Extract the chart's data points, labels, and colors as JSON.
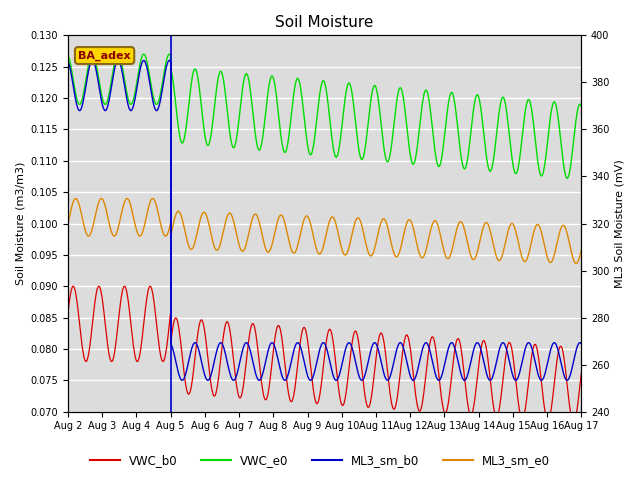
{
  "title": "Soil Moisture",
  "ylabel_left": "Soil Moisture (m3/m3)",
  "ylabel_right": "ML3 Soil Moisture (mV)",
  "ylim_left": [
    0.07,
    0.13
  ],
  "ylim_right": [
    240,
    400
  ],
  "annotation_text": "BA_adex",
  "bg_color": "#dcdcdc",
  "line_colors": {
    "VWC_b0": "#dd0000",
    "VWC_e0": "#00dd00",
    "ML3_sm_b0": "#0000cc",
    "ML3_sm_e0": "#dd8800"
  },
  "vline_x": 3.0,
  "period_days": 0.75
}
